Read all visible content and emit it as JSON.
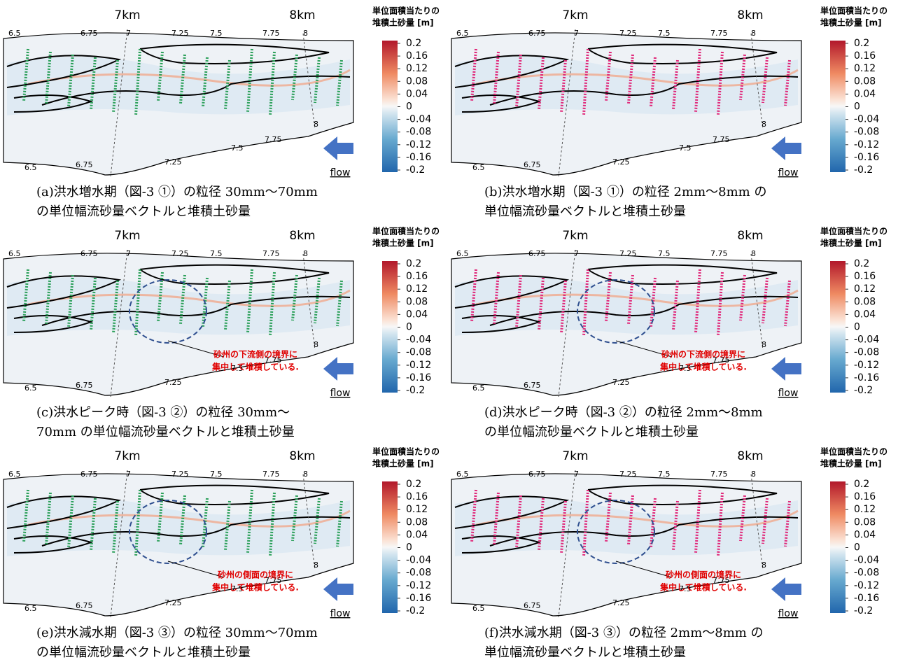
{
  "km_labels": [
    "7km",
    "8km"
  ],
  "colorbar": {
    "title": [
      "単位面積当たりの",
      "堆積土砂量 [m]"
    ],
    "ticks": [
      0.2,
      0.16,
      0.12,
      0.08,
      0.04,
      0,
      -0.04,
      -0.08,
      -0.12,
      -0.16,
      -0.2
    ]
  },
  "stations_top": [
    "6.5",
    "6.75",
    "7",
    "7.25",
    "7.5",
    "7.75",
    "8"
  ],
  "stations_bottom": [
    "6.5",
    "6.75",
    "7.25",
    "7.5",
    "7.75",
    "8"
  ],
  "flow_label": "flow",
  "panels": [
    {
      "vector_color": "#2ca05a",
      "highlight": false,
      "caption": [
        "(a)洪水増水期（図-3 ①）の粒径 30mm～70mm",
        "の単位幅流砂量ベクトルと堆積土砂量"
      ]
    },
    {
      "vector_color": "#e0297a",
      "highlight": false,
      "caption": [
        "(b)洪水増水期（図-3 ①）の粒径 2mm～8mm の",
        "単位幅流砂量ベクトルと堆積土砂量"
      ]
    },
    {
      "vector_color": "#2ca05a",
      "highlight": true,
      "annotation": [
        "砂州の下流側の境界に",
        "集中して堆積している."
      ],
      "caption": [
        "(c)洪水ピーク時（図-3 ②）の粒径 30mm～",
        "70mm の単位幅流砂量ベクトルと堆積土砂量"
      ]
    },
    {
      "vector_color": "#e0297a",
      "highlight": true,
      "annotation": [
        "砂州の下流側の境界に",
        "集中して堆積している."
      ],
      "caption": [
        "(d)洪水ピーク時（図-3 ②）の粒径 2mm～8mm",
        "の単位幅流砂量ベクトルと堆積土砂量"
      ]
    },
    {
      "vector_color": "#2ca05a",
      "highlight": true,
      "annotation": [
        "砂州の側面の境界に",
        "集中して堆積している."
      ],
      "caption": [
        "(e)洪水減水期（図-3 ③）の粒径 30mm～70mm",
        "の単位幅流砂量ベクトルと堆積土砂量"
      ]
    },
    {
      "vector_color": "#e0297a",
      "highlight": true,
      "annotation": [
        "砂州の側面の境界に",
        "集中して堆積している."
      ],
      "caption": [
        "(f)洪水減水期（図-3 ③）の粒径 2mm～8mm の",
        "単位幅流砂量ベクトルと堆積土砂量"
      ]
    }
  ]
}
